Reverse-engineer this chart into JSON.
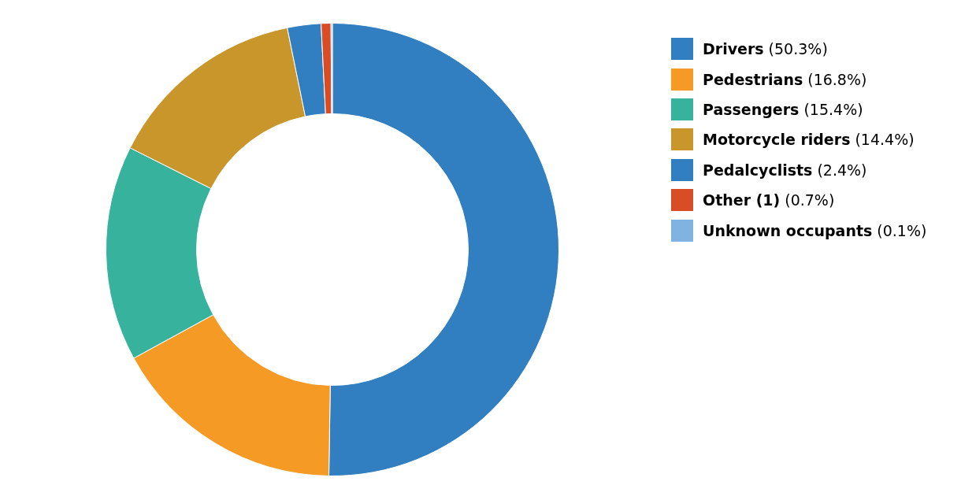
{
  "chart_data": {
    "type": "donut",
    "categories": [
      "Drivers",
      "Pedestrians",
      "Passengers",
      "Motorcycle riders",
      "Pedalcyclists",
      "Other (1)",
      "Unknown occupants"
    ],
    "values": [
      50.3,
      16.8,
      15.4,
      14.4,
      2.4,
      0.7,
      0.1
    ],
    "value_labels": [
      "(50.3%)",
      "(16.8%)",
      "(15.4%)",
      "(14.4%)",
      "(2.4%)",
      "(0.7%)",
      "(0.1%)"
    ],
    "colors": [
      "#317fc0",
      "#f59a25",
      "#37b29c",
      "#c8962b",
      "#317fc0",
      "#d84d25",
      "#80b3e0"
    ],
    "legend": "top right"
  }
}
